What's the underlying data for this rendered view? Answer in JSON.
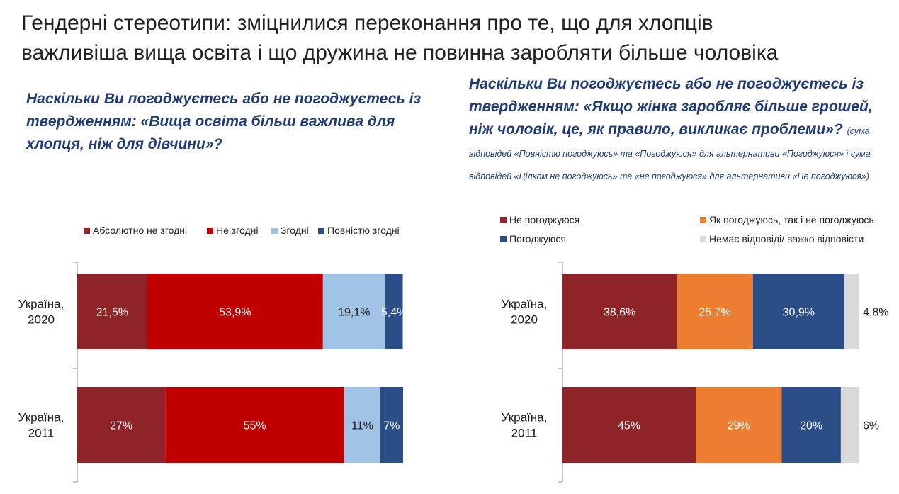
{
  "page": {
    "title_line1": "Гендерні стереотипи: зміцнилися переконання про те, що для хлопців",
    "title_line2": "важливіша вища освіта і що дружина не повинна заробляти більше чоловіка"
  },
  "left_panel": {
    "question": "Наскільки Ви погоджуєтесь або не погоджуєтесь із твердженням: «Вища освіта більш важлива для хлопця, ніж для дівчини»?"
  },
  "right_panel": {
    "question": "Наскільки Ви погоджуєтесь або не погоджуєтесь із твердженням: «Якщо жінка заробляє більше грошей, ніж чоловік, це, як правило, викликає проблеми»?",
    "note": "(сума відповідей «Повністю погоджуюсь» та «Погоджуюся» для альтернативи «Погоджуюся» і сума відповідей «Цілком не погоджуюсь» та «не погоджуюся» для альтернативи «Не погоджуюся»)"
  },
  "chart_data": [
    {
      "type": "bar",
      "orientation": "horizontal",
      "stacked": true,
      "categories": [
        "Україна,\n2020",
        "Україна,\n2011"
      ],
      "series": [
        {
          "name": "Абсолютно не згодні",
          "color": "#8e2328",
          "values": [
            21.5,
            27
          ],
          "labels": [
            "21,5%",
            "27%"
          ]
        },
        {
          "name": "Не згодні",
          "color": "#c00000",
          "values": [
            53.9,
            55
          ],
          "labels": [
            "53,9%",
            "55%"
          ]
        },
        {
          "name": "Згодні",
          "color": "#a0c3e6",
          "values": [
            19.1,
            11
          ],
          "labels": [
            "19,1%",
            "11%"
          ]
        },
        {
          "name": "Повністю згодні",
          "color": "#2b4e88",
          "values": [
            5.4,
            7
          ],
          "labels": [
            "5,4%",
            "7%"
          ]
        }
      ],
      "xlim": [
        0,
        100
      ],
      "legend": "top",
      "grid": false
    },
    {
      "type": "bar",
      "orientation": "horizontal",
      "stacked": true,
      "categories": [
        "Україна,\n2020",
        "Україна,\n2011"
      ],
      "series": [
        {
          "name": "Не погоджуюся",
          "color": "#8e2328",
          "values": [
            38.6,
            45
          ],
          "labels": [
            "38,6%",
            "45%"
          ]
        },
        {
          "name": "Як погоджуюсь, так і не погоджуюсь",
          "color": "#ed7d31",
          "values": [
            25.7,
            29
          ],
          "labels": [
            "25,7%",
            "29%"
          ]
        },
        {
          "name": "Погоджуюся",
          "color": "#2b4e88",
          "values": [
            30.9,
            20
          ],
          "labels": [
            "30,9%",
            "20%"
          ]
        },
        {
          "name": "Немає відповіді/ важко відповісти",
          "color": "#d9d9d9",
          "values": [
            4.8,
            6
          ],
          "labels": [
            "4,8%",
            "6%"
          ]
        }
      ],
      "xlim": [
        0,
        100
      ],
      "legend": "top",
      "grid": false
    }
  ]
}
